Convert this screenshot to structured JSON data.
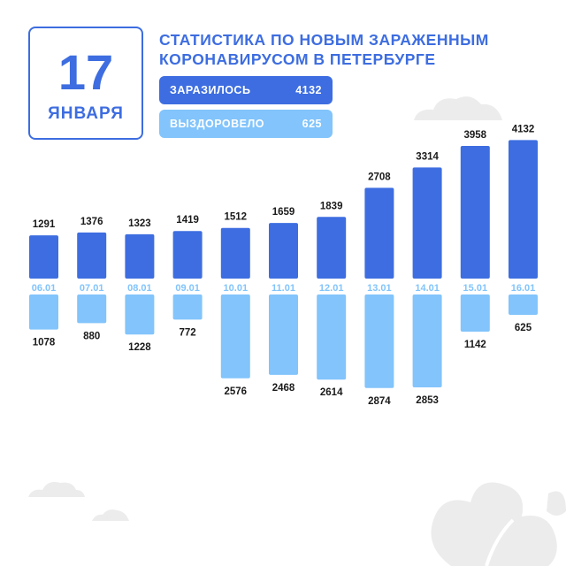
{
  "header": {
    "day": "17",
    "month": "ЯНВАРЯ",
    "title_line1": "СТАТИСТИКА ПО НОВЫМ ЗАРАЖЕННЫМ",
    "title_line2": "КОРОНАВИРУСОМ В ПЕТЕРБУРГЕ"
  },
  "legend": {
    "infected_label": "ЗАРАЗИЛОСЬ",
    "infected_value": "4132",
    "recovered_label": "ВЫЗДОРОВЕЛО",
    "recovered_value": "625"
  },
  "colors": {
    "infected": "#3d6de0",
    "recovered": "#82c4fb",
    "text": "#1a1a1a",
    "cloud": "#ececec"
  },
  "chart_data": {
    "type": "bar",
    "categories": [
      "06.01",
      "07.01",
      "08.01",
      "09.01",
      "10.01",
      "11.01",
      "12.01",
      "13.01",
      "14.01",
      "15.01",
      "16.01"
    ],
    "series": [
      {
        "name": "ЗАРАЗИЛОСЬ",
        "values": [
          1291,
          1376,
          1323,
          1419,
          1512,
          1659,
          1839,
          2708,
          3314,
          3958,
          4132
        ]
      },
      {
        "name": "ВЫЗДОРОВЕЛО",
        "values": [
          1078,
          880,
          1228,
          772,
          2576,
          2468,
          2614,
          2874,
          2853,
          1142,
          625
        ]
      }
    ],
    "title": "СТАТИСТИКА ПО НОВЫМ ЗАРАЖЕННЫМ КОРОНАВИРУСОМ В ПЕТЕРБУРГЕ",
    "grid": false
  }
}
